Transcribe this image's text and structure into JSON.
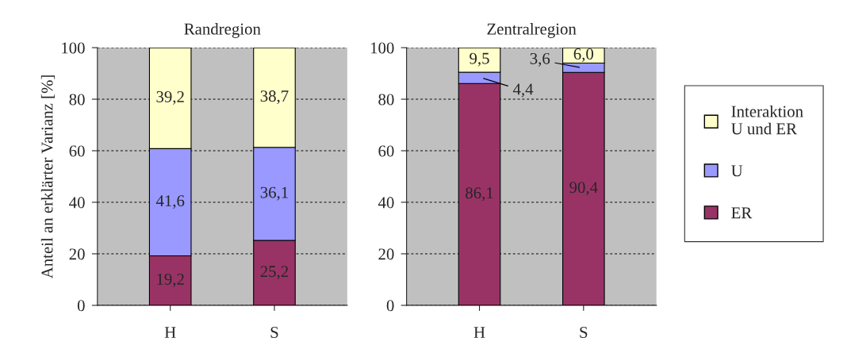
{
  "chart_data": [
    {
      "type": "bar",
      "title": "Randregion",
      "ylabel": "Anteil an erklärter Varianz [%]",
      "categories": [
        "H",
        "S"
      ],
      "stacked": true,
      "ylim": [
        0,
        100
      ],
      "yticks": [
        0,
        20,
        40,
        60,
        80,
        100
      ],
      "grid": "y",
      "series": [
        {
          "color": "#993366",
          "values": [
            19.2,
            25.2
          ],
          "value_labels": [
            "19,2",
            "25,2"
          ]
        },
        {
          "color": "#9999ff",
          "values": [
            41.6,
            36.1
          ],
          "value_labels": [
            "41,6",
            "36,1"
          ]
        },
        {
          "color": "#ffffcc",
          "values": [
            39.2,
            38.7
          ],
          "value_labels": [
            "39,2",
            "38,7"
          ]
        }
      ]
    },
    {
      "type": "bar",
      "title": "Zentralregion",
      "categories": [
        "H",
        "S"
      ],
      "stacked": true,
      "ylim": [
        0,
        100
      ],
      "yticks": [
        0,
        20,
        40,
        60,
        80,
        100
      ],
      "grid": "y",
      "legend": "right",
      "series": [
        {
          "name": "ER",
          "color": "#993366",
          "values": [
            86.1,
            90.4
          ],
          "value_labels": [
            "86,1",
            "90,4"
          ]
        },
        {
          "name": "U",
          "color": "#9999ff",
          "values": [
            4.4,
            3.6
          ],
          "value_labels": [
            "4,4",
            "3,6"
          ]
        },
        {
          "name": "Interaktion\nU und ER",
          "color": "#ffffcc",
          "values": [
            9.5,
            6.0
          ],
          "value_labels": [
            "9,5",
            "6,0"
          ]
        }
      ]
    }
  ]
}
